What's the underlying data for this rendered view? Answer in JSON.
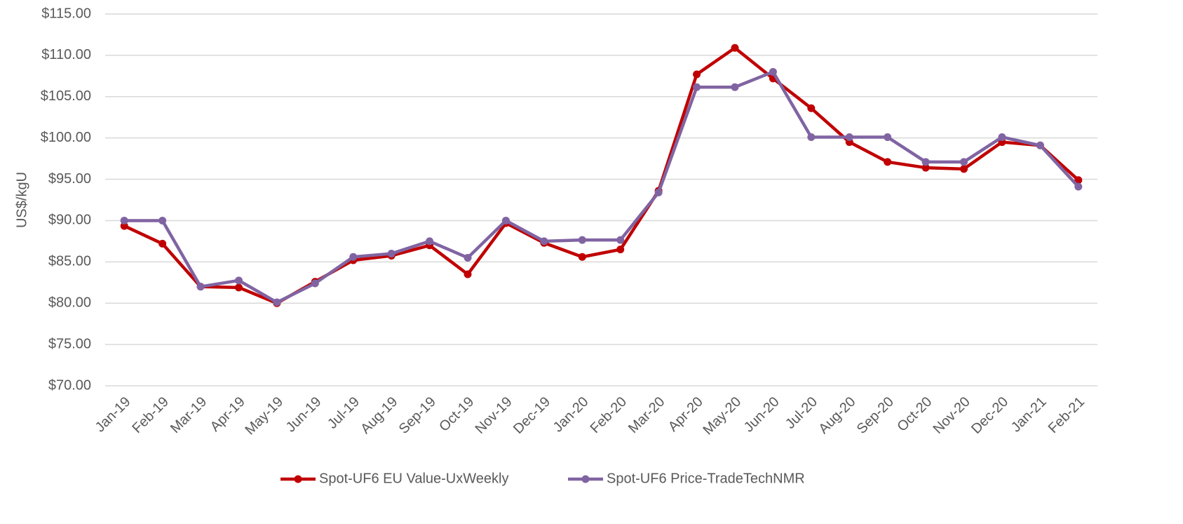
{
  "chart_data": {
    "type": "line",
    "y_label": "US$/kgU",
    "categories": [
      "Jan-19",
      "Feb-19",
      "Mar-19",
      "Apr-19",
      "May-19",
      "Jun-19",
      "Jul-19",
      "Aug-19",
      "Sep-19",
      "Oct-19",
      "Nov-19",
      "Dec-19",
      "Jan-20",
      "Feb-20",
      "Mar-20",
      "Apr-20",
      "May-20",
      "Jun-20",
      "Jul-20",
      "Aug-20",
      "Sep-20",
      "Oct-20",
      "Nov-20",
      "Dec-20",
      "Jan-21",
      "Feb-21"
    ],
    "series": [
      {
        "name": "Spot-UF6 EU Value-UxWeekly",
        "color": "#c00000",
        "values": [
          89.35,
          87.2,
          82.0,
          81.9,
          80.0,
          82.6,
          85.2,
          85.75,
          87.0,
          83.5,
          89.7,
          87.3,
          85.6,
          86.5,
          93.6,
          107.7,
          110.9,
          107.2,
          103.6,
          99.5,
          97.1,
          96.4,
          96.25,
          99.5,
          99.1,
          94.9
        ]
      },
      {
        "name": "Spot-UF6 Price-TradeTechNMR",
        "color": "#8064a2",
        "values": [
          90.0,
          90.0,
          82.0,
          82.75,
          80.1,
          82.4,
          85.6,
          86.0,
          87.5,
          85.5,
          90.0,
          87.5,
          87.65,
          87.65,
          93.4,
          106.15,
          106.15,
          108.0,
          100.1,
          100.1,
          100.1,
          97.1,
          97.1,
          100.1,
          99.1,
          94.1
        ]
      }
    ],
    "ylim": [
      70,
      115
    ],
    "yticks": [
      {
        "value": 70,
        "label": "$70.00"
      },
      {
        "value": 75,
        "label": "$75.00"
      },
      {
        "value": 80,
        "label": "$80.00"
      },
      {
        "value": 85,
        "label": "$85.00"
      },
      {
        "value": 90,
        "label": "$90.00"
      },
      {
        "value": 95,
        "label": "$95.00"
      },
      {
        "value": 100,
        "label": "$100.00"
      },
      {
        "value": 105,
        "label": "$105.00"
      },
      {
        "value": 110,
        "label": "$110.00"
      },
      {
        "value": 115,
        "label": "$115.00"
      }
    ],
    "grid": true,
    "legend": "bottom"
  }
}
